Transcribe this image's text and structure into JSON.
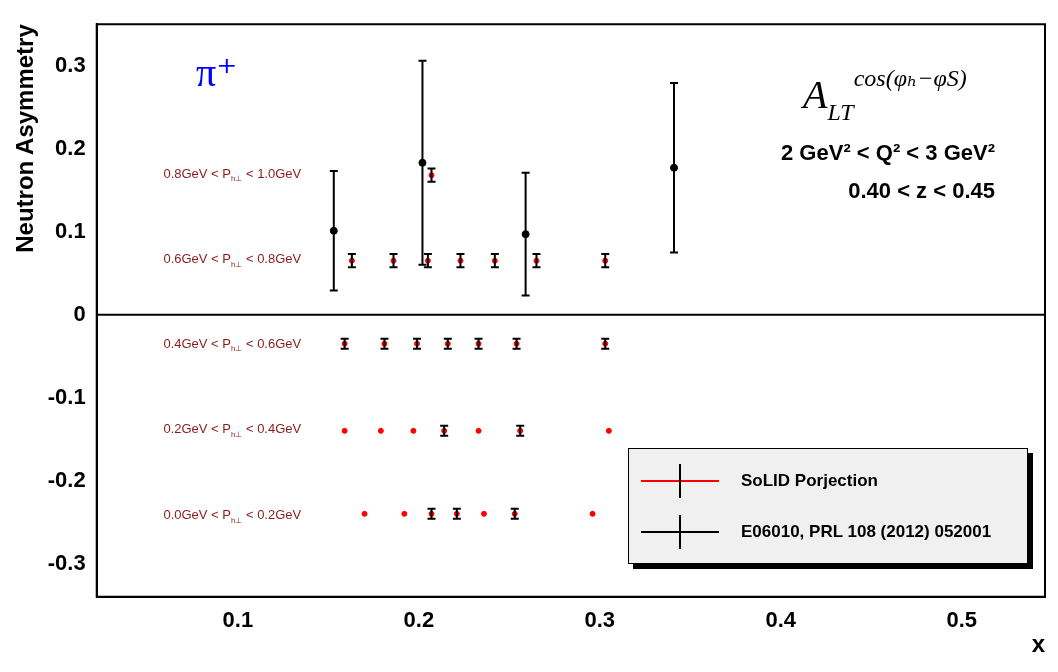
{
  "chart_data": {
    "type": "scatter",
    "xlabel": "x",
    "ylabel": "Neutron Asymmetry",
    "xlim": [
      0.022,
      0.546
    ],
    "xticks": [
      0.1,
      0.2,
      0.3,
      0.4,
      0.5
    ],
    "ylim": [
      -0.34,
      0.35
    ],
    "yticks": [
      -0.3,
      -0.2,
      -0.1,
      0,
      0.1,
      0.2,
      0.3
    ],
    "grid": false,
    "legend": "bottom right",
    "marker": "circle",
    "ref_lines": [
      {
        "axis": "y",
        "value": 0,
        "color": "#000000"
      }
    ],
    "series": [
      {
        "name": "SoLID Porjection",
        "color": "#ff0000",
        "x": [
          0.207,
          0.163,
          0.186,
          0.205,
          0.223,
          0.242,
          0.265,
          0.303,
          0.159,
          0.181,
          0.199,
          0.216,
          0.233,
          0.254,
          0.303,
          0.159,
          0.179,
          0.197,
          0.214,
          0.233,
          0.256,
          0.305,
          0.17,
          0.192,
          0.207,
          0.221,
          0.236,
          0.253,
          0.296
        ],
        "values": [
          0.168,
          0.065,
          0.065,
          0.065,
          0.065,
          0.065,
          0.065,
          0.065,
          -0.035,
          -0.035,
          -0.035,
          -0.035,
          -0.035,
          -0.035,
          -0.035,
          -0.14,
          -0.14,
          -0.14,
          -0.14,
          -0.14,
          -0.14,
          -0.14,
          -0.24,
          -0.24,
          -0.24,
          -0.24,
          -0.24,
          -0.24,
          -0.24
        ],
        "errors": [
          0.008,
          0.008,
          0.008,
          0.008,
          0.008,
          0.008,
          0.008,
          0.008,
          0.006,
          0.006,
          0.006,
          0.006,
          0.006,
          0.006,
          0.006,
          null,
          null,
          null,
          0.006,
          null,
          0.006,
          null,
          null,
          null,
          0.006,
          0.006,
          null,
          0.006,
          null
        ]
      },
      {
        "name": "E06010, PRL 108 (2012) 052001",
        "color": "#000000",
        "x": [
          0.153,
          0.202,
          0.259,
          0.341
        ],
        "values": [
          0.101,
          0.183,
          0.097,
          0.177
        ],
        "errors": [
          0.072,
          0.123,
          0.074,
          0.102
        ]
      }
    ],
    "annotations": [
      "π⁺",
      "A$_{LT}$$^{cos(φₕ−φS)}$",
      "2 GeV² < Q² < 3 GeV²",
      "0.40 < z < 0.45",
      "0.8GeV < P$_{h⊥}$ < 1.0GeV",
      "0.6GeV < P$_{h⊥}$ < 0.8GeV",
      "0.4GeV < P$_{h⊥}$ < 0.6GeV",
      "0.2GeV < P$_{h⊥}$ < 0.4GeV",
      "0.0GeV < P$_{h⊥}$ < 0.2GeV"
    ]
  }
}
